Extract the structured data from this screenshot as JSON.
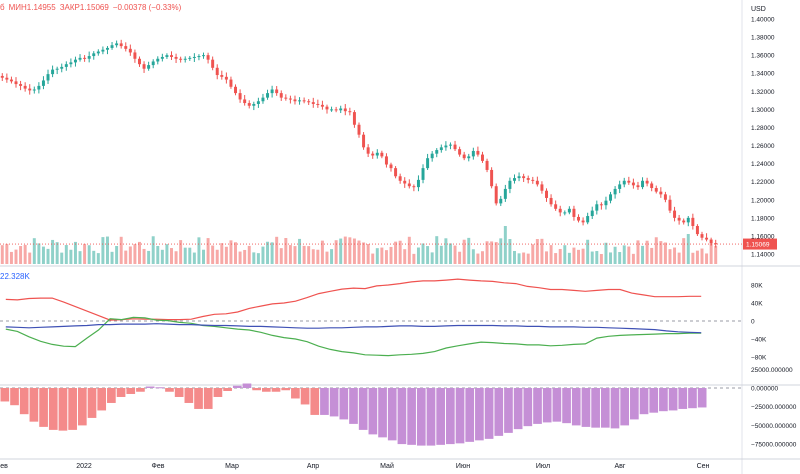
{
  "header": {
    "open_frag": "б",
    "low": "МИН1.14955",
    "close": "ЗАКР1.15069",
    "change": "−0.00378 (−0.33%)"
  },
  "currency": "USD",
  "cot_label": "22.328K",
  "colors": {
    "up": "#26a69a",
    "down": "#ef5350",
    "vol_up": "#8fd1c9",
    "vol_down": "#f7a8a6",
    "long": "#ef5350",
    "short": "#4caf50",
    "net": "#3f51b5",
    "hist_pos": "#f48a8a",
    "hist_neg": "#c58fd6"
  },
  "chart_data": [
    {
      "type": "candlestick",
      "title": "",
      "x_tick_labels": [
        "ев",
        "2022",
        "Фев",
        "Мар",
        "Апр",
        "Май",
        "Июн",
        "Июл",
        "Авг",
        "Сен"
      ],
      "y_ticks": [
        "1.40000",
        "1.38000",
        "1.36000",
        "1.34000",
        "1.32000",
        "1.30000",
        "1.28000",
        "1.26000",
        "1.24000",
        "1.22000",
        "1.20000",
        "1.18000",
        "1.16000",
        "1.14000"
      ],
      "ylim": [
        1.1335,
        1.4085
      ],
      "last_price_label": "1.15069",
      "close_series": [
        1.335,
        1.333,
        1.331,
        1.328,
        1.326,
        1.323,
        1.321,
        1.322,
        1.326,
        1.332,
        1.339,
        1.344,
        1.345,
        1.347,
        1.35,
        1.352,
        1.355,
        1.357,
        1.356,
        1.359,
        1.362,
        1.364,
        1.366,
        1.368,
        1.371,
        1.373,
        1.37,
        1.367,
        1.363,
        1.356,
        1.35,
        1.345,
        1.349,
        1.353,
        1.356,
        1.358,
        1.36,
        1.358,
        1.356,
        1.355,
        1.356,
        1.357,
        1.358,
        1.359,
        1.36,
        1.355,
        1.346,
        1.338,
        1.336,
        1.333,
        1.325,
        1.318,
        1.311,
        1.307,
        1.304,
        1.306,
        1.309,
        1.313,
        1.318,
        1.322,
        1.318,
        1.313,
        1.312,
        1.311,
        1.309,
        1.31,
        1.309,
        1.308,
        1.306,
        1.305,
        1.303,
        1.3,
        1.3,
        1.299,
        1.301,
        1.298,
        1.297,
        1.283,
        1.272,
        1.258,
        1.251,
        1.249,
        1.252,
        1.248,
        1.239,
        1.235,
        1.226,
        1.221,
        1.218,
        1.215,
        1.214,
        1.222,
        1.235,
        1.246,
        1.251,
        1.255,
        1.258,
        1.26,
        1.261,
        1.256,
        1.25,
        1.246,
        1.248,
        1.254,
        1.25,
        1.243,
        1.233,
        1.215,
        1.196,
        1.201,
        1.212,
        1.221,
        1.224,
        1.226,
        1.224,
        1.222,
        1.221,
        1.217,
        1.21,
        1.202,
        1.195,
        1.19,
        1.186,
        1.186,
        1.19,
        1.181,
        1.177,
        1.175,
        1.182,
        1.188,
        1.195,
        1.194,
        1.199,
        1.206,
        1.212,
        1.217,
        1.221,
        1.219,
        1.216,
        1.214,
        1.221,
        1.218,
        1.213,
        1.209,
        1.206,
        1.2,
        1.188,
        1.18,
        1.177,
        1.175,
        1.18,
        1.171,
        1.162,
        1.158,
        1.156,
        1.152,
        1.151
      ],
      "volume": {
        "max_price_equiv": 0.022
      },
      "panels": [
        {
          "type": "line",
          "name": "COT",
          "y_ticks": [
            "80K",
            "40K",
            "0",
            "−40K",
            "−80K"
          ],
          "ylim": [
            -100000,
            100000
          ],
          "weekly": {
            "long": [
              48000,
              47000,
              50000,
              51000,
              51000,
              42000,
              32000,
              22000,
              12000,
              2000,
              3000,
              5000,
              4000,
              4000,
              3000,
              3000,
              4000,
              10000,
              15000,
              16000,
              20000,
              28000,
              33000,
              38000,
              40000,
              44000,
              52000,
              61000,
              66000,
              71000,
              73000,
              72000,
              78000,
              80000,
              83000,
              87000,
              89000,
              89000,
              91000,
              93000,
              91000,
              89000,
              88000,
              85000,
              83000,
              77000,
              74000,
              70000,
              70000,
              68000,
              66000,
              68000,
              70000,
              70000,
              62000,
              58000,
              54000,
              54000,
              54000,
              55000,
              55000
            ],
            "short": [
              -18000,
              -23000,
              -35000,
              -45000,
              -52000,
              -56000,
              -57000,
              -38000,
              -20000,
              5000,
              3000,
              8000,
              7000,
              2000,
              1000,
              -3000,
              -5000,
              -10000,
              -12000,
              -15000,
              -18000,
              -20000,
              -25000,
              -32000,
              -37000,
              -40000,
              -46000,
              -56000,
              -63000,
              -68000,
              -71000,
              -75000,
              -76000,
              -77000,
              -75000,
              -74000,
              -72000,
              -68000,
              -60000,
              -55000,
              -51000,
              -47000,
              -48000,
              -50000,
              -51000,
              -53000,
              -53000,
              -55000,
              -54000,
              -52000,
              -51000,
              -38000,
              -34000,
              -32000,
              -31000,
              -30000,
              -29000,
              -28000,
              -28000,
              -27000,
              -27000
            ],
            "net": [
              -13000,
              -14000,
              -15000,
              -14000,
              -13000,
              -12000,
              -11000,
              -10000,
              -8000,
              -8000,
              -7000,
              -7000,
              -7000,
              -6000,
              -7000,
              -8000,
              -8000,
              -9000,
              -10000,
              -10000,
              -11000,
              -12000,
              -12000,
              -13000,
              -14000,
              -15000,
              -16000,
              -16000,
              -15000,
              -15000,
              -14000,
              -13000,
              -13000,
              -12000,
              -11000,
              -11000,
              -12000,
              -12000,
              -11000,
              -10000,
              -10000,
              -10000,
              -10000,
              -11000,
              -11000,
              -12000,
              -12000,
              -13000,
              -13000,
              -13000,
              -14000,
              -14000,
              -15000,
              -16000,
              -17000,
              -18000,
              -19000,
              -22000,
              -24000,
              -25000,
              -26000
            ]
          }
        },
        {
          "type": "bar",
          "name": "Net histogram",
          "y_ticks": [
            "25000.000000",
            "0.000000",
            "−25000.000000",
            "−50000.000000",
            "−75000.000000"
          ],
          "ylim": [
            -95000,
            35000
          ],
          "weekly": [
            -18000,
            -23000,
            -35000,
            -45000,
            -52000,
            -56000,
            -57000,
            -56000,
            -50000,
            -40000,
            -30000,
            -20000,
            -12000,
            -8000,
            -5000,
            2000,
            1000,
            -5000,
            -12000,
            -20000,
            -28000,
            -28000,
            -12000,
            -4000,
            3000,
            6000,
            -3000,
            -5000,
            -5000,
            -3000,
            -14000,
            -22000,
            -36000,
            -36000,
            -38000,
            -42000,
            -48000,
            -56000,
            -62000,
            -66000,
            -70000,
            -75000,
            -76000,
            -77000,
            -77000,
            -76000,
            -75000,
            -74000,
            -72000,
            -70000,
            -68000,
            -64000,
            -60000,
            -55000,
            -51000,
            -48000,
            -46000,
            -45000,
            -47000,
            -50000,
            -52000,
            -53000,
            -53000,
            -54000,
            -50000,
            -42000,
            -35000,
            -33000,
            -31000,
            -30000,
            -28000,
            -27000,
            -26000
          ]
        }
      ]
    }
  ]
}
